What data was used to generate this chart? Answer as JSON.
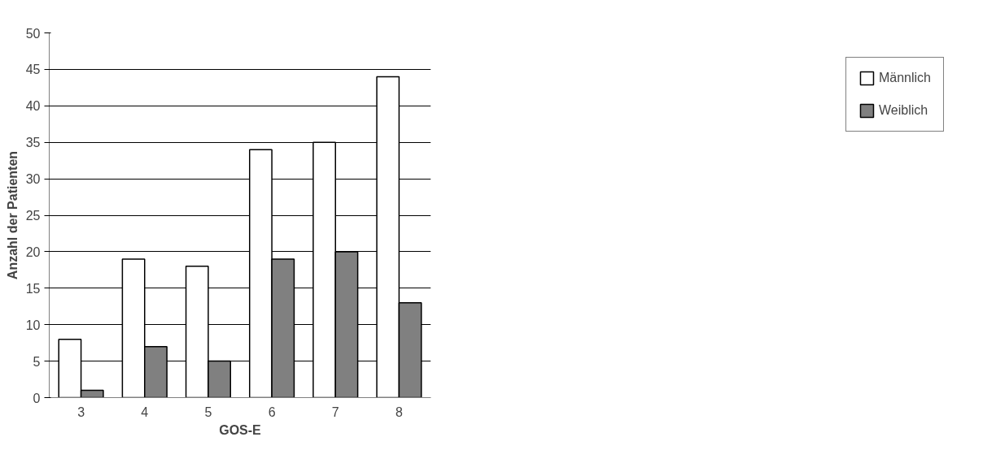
{
  "chart_data": {
    "type": "bar",
    "xlabel": "GOS-E",
    "ylabel": "Anzahl der Patienten",
    "categories": [
      "3",
      "4",
      "5",
      "6",
      "7",
      "8"
    ],
    "series": [
      {
        "name": "Männlich",
        "color": "#ffffff",
        "values": [
          8,
          19,
          18,
          34,
          35,
          44
        ]
      },
      {
        "name": "Weiblich",
        "color": "#808080",
        "values": [
          1,
          7,
          5,
          19,
          20,
          13
        ]
      }
    ],
    "ylim": [
      0,
      50
    ],
    "yticks": [
      0,
      5,
      10,
      15,
      20,
      25,
      30,
      35,
      40,
      45,
      50
    ],
    "grid": "y",
    "legend": "right"
  }
}
